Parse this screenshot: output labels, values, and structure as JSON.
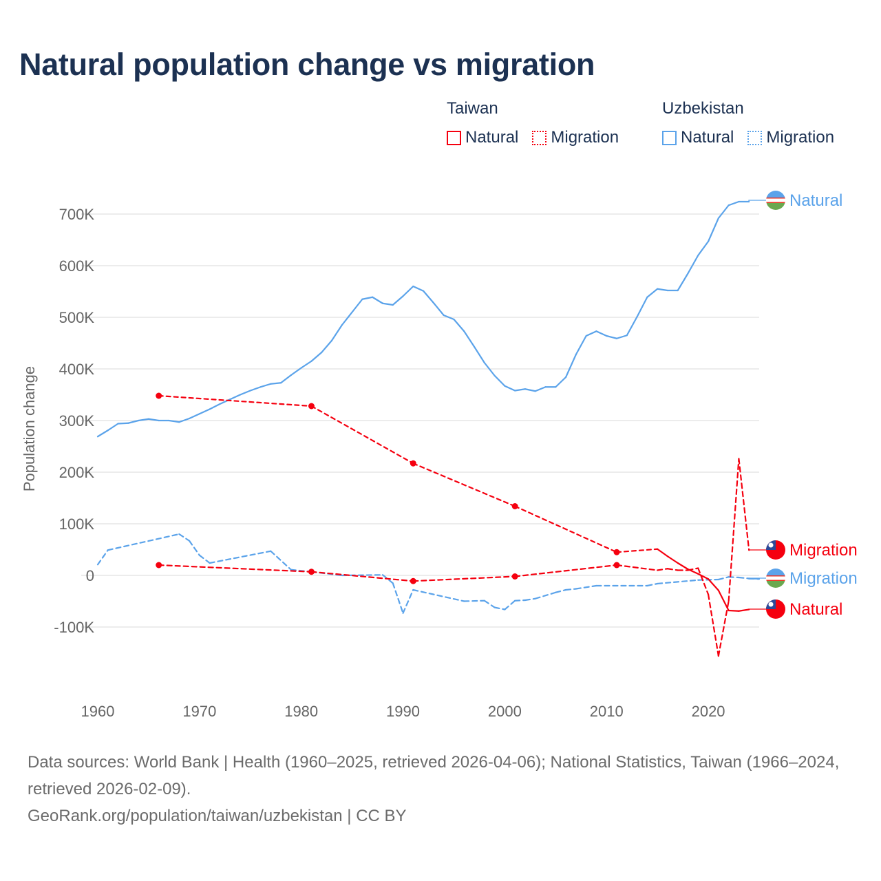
{
  "title": "Natural population change vs migration",
  "legend": {
    "groups": [
      {
        "country": "Taiwan",
        "color": "#f5000f",
        "items": [
          {
            "label": "Natural",
            "style": "solid"
          },
          {
            "label": "Migration",
            "style": "dotted"
          }
        ]
      },
      {
        "country": "Uzbekistan",
        "color": "#5ba3ea",
        "items": [
          {
            "label": "Natural",
            "style": "solid"
          },
          {
            "label": "Migration",
            "style": "dotted"
          }
        ]
      }
    ]
  },
  "chart_data": {
    "type": "line",
    "title": "Natural population change vs migration",
    "xlabel": "",
    "ylabel": "Population change",
    "xlim": [
      1960,
      2025
    ],
    "ylim": [
      -160000,
      760000
    ],
    "x_ticks": [
      1960,
      1970,
      1980,
      1990,
      2000,
      2010,
      2020
    ],
    "y_ticks": [
      {
        "v": -100000,
        "label": "-100K"
      },
      {
        "v": 0,
        "label": "0"
      },
      {
        "v": 100000,
        "label": "100K"
      },
      {
        "v": 200000,
        "label": "200K"
      },
      {
        "v": 300000,
        "label": "300K"
      },
      {
        "v": 400000,
        "label": "400K"
      },
      {
        "v": 500000,
        "label": "500K"
      },
      {
        "v": 600000,
        "label": "600K"
      },
      {
        "v": 700000,
        "label": "700K"
      }
    ],
    "grid": true,
    "legend_position": "top-right",
    "series": [
      {
        "name": "Uzbekistan Natural",
        "country": "Uzbekistan",
        "kind": "Natural",
        "end_label": "Natural",
        "color": "#5ba3ea",
        "dashed": false,
        "points": [
          [
            1960,
            269000
          ],
          [
            1961,
            281000
          ],
          [
            1962,
            294000
          ],
          [
            1963,
            295000
          ],
          [
            1964,
            300000
          ],
          [
            1965,
            303000
          ],
          [
            1966,
            300000
          ],
          [
            1967,
            300000
          ],
          [
            1968,
            297000
          ],
          [
            1969,
            304000
          ],
          [
            1970,
            313000
          ],
          [
            1971,
            322000
          ],
          [
            1972,
            332000
          ],
          [
            1973,
            341000
          ],
          [
            1974,
            350000
          ],
          [
            1975,
            358000
          ],
          [
            1976,
            365000
          ],
          [
            1977,
            371000
          ],
          [
            1978,
            373000
          ],
          [
            1979,
            388000
          ],
          [
            1980,
            402000
          ],
          [
            1981,
            415000
          ],
          [
            1982,
            432000
          ],
          [
            1983,
            455000
          ],
          [
            1984,
            485000
          ],
          [
            1985,
            510000
          ],
          [
            1986,
            535000
          ],
          [
            1987,
            539000
          ],
          [
            1988,
            527000
          ],
          [
            1989,
            524000
          ],
          [
            1990,
            541000
          ],
          [
            1991,
            560000
          ],
          [
            1992,
            551000
          ],
          [
            1993,
            528000
          ],
          [
            1994,
            504000
          ],
          [
            1995,
            496000
          ],
          [
            1996,
            473000
          ],
          [
            1997,
            443000
          ],
          [
            1998,
            412000
          ],
          [
            1999,
            387000
          ],
          [
            2000,
            367000
          ],
          [
            2001,
            358000
          ],
          [
            2002,
            361000
          ],
          [
            2003,
            357000
          ],
          [
            2004,
            365000
          ],
          [
            2005,
            365000
          ],
          [
            2006,
            384000
          ],
          [
            2007,
            428000
          ],
          [
            2008,
            464000
          ],
          [
            2009,
            473000
          ],
          [
            2010,
            464000
          ],
          [
            2011,
            459000
          ],
          [
            2012,
            465000
          ],
          [
            2013,
            501000
          ],
          [
            2014,
            539000
          ],
          [
            2015,
            555000
          ],
          [
            2016,
            552000
          ],
          [
            2017,
            552000
          ],
          [
            2018,
            585000
          ],
          [
            2019,
            620000
          ],
          [
            2020,
            647000
          ],
          [
            2021,
            692000
          ],
          [
            2022,
            717000
          ],
          [
            2023,
            724000
          ],
          [
            2024,
            724000
          ]
        ]
      },
      {
        "name": "Uzbekistan Migration",
        "country": "Uzbekistan",
        "kind": "Migration",
        "end_label": "Migration",
        "color": "#5ba3ea",
        "dashed": true,
        "points": [
          [
            1960,
            21000
          ],
          [
            1961,
            49000
          ],
          [
            1968,
            80000
          ],
          [
            1969,
            67000
          ],
          [
            1970,
            39000
          ],
          [
            1971,
            24000
          ],
          [
            1977,
            47000
          ],
          [
            1979,
            11000
          ],
          [
            1981,
            7000
          ],
          [
            1984,
            0
          ],
          [
            1988,
            1000
          ],
          [
            1989,
            -15000
          ],
          [
            1990,
            -73000
          ],
          [
            1991,
            -28000
          ],
          [
            1996,
            -50000
          ],
          [
            1998,
            -49000
          ],
          [
            1999,
            -62000
          ],
          [
            2000,
            -66000
          ],
          [
            2001,
            -49000
          ],
          [
            2002,
            -48000
          ],
          [
            2003,
            -45000
          ],
          [
            2005,
            -33000
          ],
          [
            2006,
            -28000
          ],
          [
            2007,
            -26000
          ],
          [
            2009,
            -20000
          ],
          [
            2014,
            -20000
          ],
          [
            2015,
            -16000
          ],
          [
            2019,
            -9000
          ],
          [
            2021,
            -8000
          ],
          [
            2022,
            -3000
          ],
          [
            2023,
            -4000
          ],
          [
            2024,
            -6000
          ],
          [
            2025,
            -7000
          ]
        ]
      },
      {
        "name": "Taiwan Natural",
        "country": "Taiwan",
        "kind": "Natural",
        "end_label": "Natural",
        "color": "#f5000f",
        "dashed": false,
        "points": [
          [
            1966,
            348000
          ],
          [
            1981,
            328000
          ],
          [
            1991,
            217000
          ],
          [
            2001,
            134000
          ],
          [
            2011,
            45000
          ],
          [
            2015,
            51000
          ],
          [
            2016,
            37000
          ],
          [
            2017,
            24000
          ],
          [
            2018,
            12000
          ],
          [
            2019,
            3000
          ],
          [
            2020,
            -7000
          ],
          [
            2021,
            -29000
          ],
          [
            2022,
            -68000
          ],
          [
            2023,
            -69000
          ],
          [
            2024,
            -66000
          ]
        ]
      },
      {
        "name": "Taiwan Migration",
        "country": "Taiwan",
        "kind": "Migration",
        "end_label": "Migration",
        "color": "#f5000f",
        "dashed": true,
        "points": [
          [
            1966,
            20000
          ],
          [
            1981,
            7000
          ],
          [
            1991,
            -11000
          ],
          [
            2001,
            -2000
          ],
          [
            2011,
            20000
          ],
          [
            2015,
            10000
          ],
          [
            2016,
            13000
          ],
          [
            2017,
            10000
          ],
          [
            2018,
            10000
          ],
          [
            2019,
            14000
          ],
          [
            2020,
            -37000
          ],
          [
            2021,
            -156000
          ],
          [
            2022,
            -50000
          ],
          [
            2023,
            226000
          ],
          [
            2024,
            49000
          ]
        ]
      }
    ]
  },
  "footer": {
    "sources": "Data sources: World Bank | Health (1960–2025, retrieved 2026-04-06); National Statistics, Taiwan (1966–2024, retrieved 2026-02-09).",
    "credit": "GeoRank.org/population/taiwan/uzbekistan | CC BY"
  }
}
